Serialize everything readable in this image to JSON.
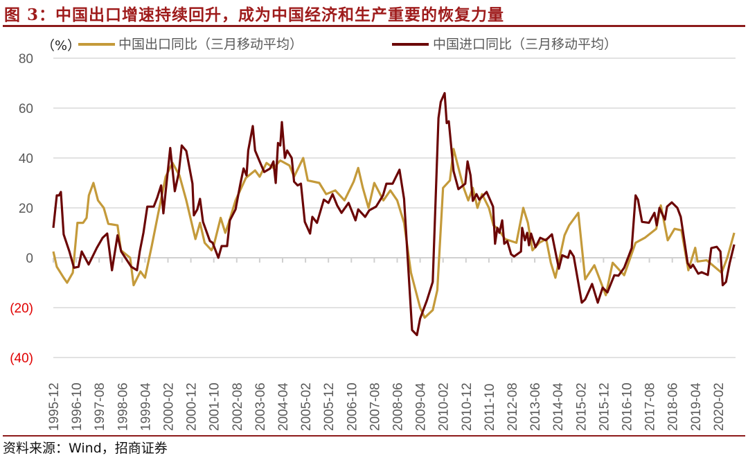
{
  "title": "图 3：中国出口增速持续回升，成为中国经济和生产重要的恢复力量",
  "source": "资料来源：Wind，招商证券",
  "chart_data": {
    "type": "line",
    "unit_label": "（%）",
    "x_start": "1995-12",
    "x_unit": "months since 1995-12",
    "x_ticks": [
      "1995-12",
      "1996-10",
      "1997-08",
      "1998-06",
      "1999-04",
      "2000-02",
      "2000-12",
      "2001-10",
      "2002-08",
      "2003-06",
      "2004-04",
      "2005-02",
      "2005-12",
      "2006-10",
      "2007-08",
      "2008-06",
      "2009-04",
      "2010-02",
      "2010-12",
      "2011-10",
      "2012-08",
      "2013-06",
      "2014-04",
      "2015-02",
      "2015-12",
      "2016-10",
      "2017-08",
      "2018-06",
      "2019-04",
      "2020-02"
    ],
    "y_ticks": [
      {
        "v": 80,
        "label": "80"
      },
      {
        "v": 60,
        "label": "60"
      },
      {
        "v": 40,
        "label": "40"
      },
      {
        "v": 20,
        "label": "20"
      },
      {
        "v": 0,
        "label": "0"
      },
      {
        "v": -20,
        "label": "(20)"
      },
      {
        "v": -40,
        "label": "(40)"
      }
    ],
    "ylim": [
      -40,
      80
    ],
    "xlim": [
      0,
      297
    ],
    "grid": true,
    "legend_position": "top",
    "series": [
      {
        "name": "中国出口同比（三月移动平均）",
        "color": "#c49a3a",
        "points": [
          [
            0,
            2.5
          ],
          [
            1.5,
            -3.6
          ],
          [
            4.5,
            -8
          ],
          [
            6,
            -10
          ],
          [
            8.5,
            -6
          ],
          [
            10.5,
            14
          ],
          [
            13,
            14
          ],
          [
            14.5,
            16
          ],
          [
            15.5,
            25
          ],
          [
            17.5,
            30
          ],
          [
            19.5,
            23
          ],
          [
            22,
            20
          ],
          [
            24,
            13.6
          ],
          [
            28,
            13
          ],
          [
            29.5,
            3
          ],
          [
            33.5,
            0
          ],
          [
            35,
            -11
          ],
          [
            38,
            -5.5
          ],
          [
            40,
            -8
          ],
          [
            43,
            5
          ],
          [
            45.6,
            17
          ],
          [
            49,
            32.5
          ],
          [
            52,
            38
          ],
          [
            55,
            33
          ],
          [
            58,
            23
          ],
          [
            62,
            7.5
          ],
          [
            64,
            14
          ],
          [
            66,
            6
          ],
          [
            69,
            3
          ],
          [
            70,
            5
          ],
          [
            73,
            16
          ],
          [
            75,
            10
          ],
          [
            76.5,
            14
          ],
          [
            79.5,
            23
          ],
          [
            84,
            32
          ],
          [
            88,
            35
          ],
          [
            90,
            32.5
          ],
          [
            93,
            38
          ],
          [
            96,
            36
          ],
          [
            99,
            39
          ],
          [
            103,
            37
          ],
          [
            105,
            32.5
          ],
          [
            109,
            40
          ],
          [
            111,
            31
          ],
          [
            116,
            30
          ],
          [
            119,
            25.5
          ],
          [
            123,
            27
          ],
          [
            127,
            23
          ],
          [
            131,
            30.5
          ],
          [
            133,
            36
          ],
          [
            135,
            28
          ],
          [
            137.5,
            20
          ],
          [
            140,
            30
          ],
          [
            144,
            23
          ],
          [
            147,
            27
          ],
          [
            150,
            23
          ],
          [
            153,
            14
          ],
          [
            156,
            -6
          ],
          [
            160,
            -20
          ],
          [
            162,
            -24
          ],
          [
            165.5,
            -21
          ],
          [
            167.5,
            -13
          ],
          [
            170,
            28
          ],
          [
            173,
            31
          ],
          [
            174.6,
            43.6
          ],
          [
            177,
            35
          ],
          [
            179,
            28
          ],
          [
            181,
            23
          ],
          [
            183,
            28
          ],
          [
            185,
            20
          ],
          [
            187,
            25.5
          ],
          [
            190,
            20
          ],
          [
            192,
            13
          ],
          [
            194,
            11.6
          ],
          [
            197,
            7.5
          ],
          [
            202,
            6
          ],
          [
            205,
            20
          ],
          [
            207,
            14
          ],
          [
            209,
            3
          ],
          [
            212,
            6
          ],
          [
            215,
            7.5
          ],
          [
            217,
            -2
          ],
          [
            219,
            -8
          ],
          [
            223,
            9
          ],
          [
            225,
            13
          ],
          [
            229,
            18
          ],
          [
            232,
            -8.6
          ],
          [
            236,
            -3
          ],
          [
            241,
            -15
          ],
          [
            244,
            -2
          ],
          [
            249,
            -7
          ],
          [
            254,
            6
          ],
          [
            258,
            8
          ],
          [
            263,
            11.6
          ],
          [
            265,
            21
          ],
          [
            268,
            7
          ],
          [
            271,
            11.6
          ],
          [
            274,
            11
          ],
          [
            277,
            -5
          ],
          [
            280,
            4
          ],
          [
            281,
            -1.5
          ],
          [
            285,
            -1
          ],
          [
            291.5,
            -6
          ],
          [
            294,
            0
          ],
          [
            297,
            10
          ]
        ]
      },
      {
        "name": "中国进口同比（三月移动平均）",
        "color": "#6b0606",
        "points": [
          [
            0,
            12
          ],
          [
            1.5,
            25
          ],
          [
            2.5,
            25
          ],
          [
            3.3,
            26.4
          ],
          [
            4.5,
            9.4
          ],
          [
            7,
            2.5
          ],
          [
            9,
            -4
          ],
          [
            11,
            -3.6
          ],
          [
            12.4,
            2.5
          ],
          [
            15.4,
            -2.7
          ],
          [
            19,
            4
          ],
          [
            21.5,
            8
          ],
          [
            23.5,
            9.7
          ],
          [
            25.6,
            -5
          ],
          [
            28,
            9
          ],
          [
            29.6,
            2.5
          ],
          [
            34,
            -3.6
          ],
          [
            36.5,
            -5
          ],
          [
            37.7,
            2.5
          ],
          [
            39.3,
            10
          ],
          [
            41,
            20.5
          ],
          [
            43.8,
            20.5
          ],
          [
            45.3,
            24
          ],
          [
            47,
            29
          ],
          [
            48,
            17.8
          ],
          [
            51,
            44
          ],
          [
            53,
            26.7
          ],
          [
            54.7,
            34
          ],
          [
            56,
            45
          ],
          [
            58,
            42.8
          ],
          [
            60.7,
            29.7
          ],
          [
            61.3,
            17
          ],
          [
            62.8,
            19.4
          ],
          [
            64,
            23.6
          ],
          [
            65.3,
            14.4
          ],
          [
            68.3,
            6.7
          ],
          [
            69.5,
            6
          ],
          [
            72,
            0
          ],
          [
            73.4,
            4.7
          ],
          [
            75.8,
            4.7
          ],
          [
            77,
            15
          ],
          [
            79.5,
            19.4
          ],
          [
            81.6,
            29.7
          ],
          [
            83,
            35.8
          ],
          [
            84.3,
            33
          ],
          [
            85,
            43
          ],
          [
            87,
            52.8
          ],
          [
            88,
            43
          ],
          [
            90,
            38.6
          ],
          [
            92,
            34.4
          ],
          [
            94.6,
            35.8
          ],
          [
            96,
            38.6
          ],
          [
            97,
            30
          ],
          [
            98,
            46
          ],
          [
            99,
            45
          ],
          [
            99.7,
            54.4
          ],
          [
            101,
            40
          ],
          [
            102,
            43
          ],
          [
            104,
            40
          ],
          [
            105,
            30.5
          ],
          [
            106.6,
            29
          ],
          [
            108,
            29.7
          ],
          [
            109.7,
            14.4
          ],
          [
            112,
            9.7
          ],
          [
            113,
            16.4
          ],
          [
            115,
            14
          ],
          [
            118,
            23.3
          ],
          [
            120,
            22
          ],
          [
            121.8,
            25.5
          ],
          [
            123.8,
            21
          ],
          [
            125.7,
            18
          ],
          [
            128.8,
            22
          ],
          [
            131.8,
            15
          ],
          [
            133,
            19.4
          ],
          [
            136,
            16.4
          ],
          [
            137.8,
            19
          ],
          [
            140.8,
            20.5
          ],
          [
            143.8,
            25
          ],
          [
            145.3,
            29.7
          ],
          [
            148,
            29.7
          ],
          [
            151,
            35.3
          ],
          [
            153,
            23.6
          ],
          [
            156.5,
            -29
          ],
          [
            158.6,
            -31
          ],
          [
            160,
            -24.4
          ],
          [
            163,
            -17
          ],
          [
            165.5,
            -9.7
          ],
          [
            168,
            56
          ],
          [
            169,
            62.5
          ],
          [
            170.7,
            66
          ],
          [
            171.6,
            54
          ],
          [
            172.5,
            54.7
          ],
          [
            174.6,
            34.7
          ],
          [
            176.7,
            27.5
          ],
          [
            179.7,
            29.7
          ],
          [
            180.7,
            38.6
          ],
          [
            182,
            33
          ],
          [
            183,
            22.8
          ],
          [
            184.6,
            25.5
          ],
          [
            185.8,
            23.3
          ],
          [
            189,
            26.4
          ],
          [
            191.8,
            20.5
          ],
          [
            192.7,
            5.6
          ],
          [
            193.7,
            12
          ],
          [
            194.6,
            10
          ],
          [
            195.8,
            15
          ],
          [
            196.7,
            5.6
          ],
          [
            198,
            6.7
          ],
          [
            199.7,
            1.4
          ],
          [
            201,
            0.5
          ],
          [
            204,
            2.5
          ],
          [
            204.5,
            12
          ],
          [
            205.7,
            7
          ],
          [
            206.7,
            10
          ],
          [
            207.5,
            5
          ],
          [
            208.4,
            9.7
          ],
          [
            210.3,
            4.2
          ],
          [
            212.4,
            8
          ],
          [
            214.8,
            7
          ],
          [
            217.5,
            9.4
          ],
          [
            220.5,
            -4.4
          ],
          [
            222,
            1
          ],
          [
            224.5,
            0
          ],
          [
            225.4,
            2.8
          ],
          [
            227,
            0.5
          ],
          [
            230.5,
            -18
          ],
          [
            232,
            -16.7
          ],
          [
            235,
            -10.5
          ],
          [
            237.5,
            -18
          ],
          [
            239.6,
            -12
          ],
          [
            241.7,
            -13.9
          ],
          [
            244.7,
            -7
          ],
          [
            246.5,
            -7.2
          ],
          [
            249,
            -4
          ],
          [
            250.7,
            0
          ],
          [
            252.3,
            3.9
          ],
          [
            254,
            25
          ],
          [
            255,
            23.3
          ],
          [
            256.8,
            14.4
          ],
          [
            259.8,
            14
          ],
          [
            262.2,
            18
          ],
          [
            263.2,
            13
          ],
          [
            264.4,
            20
          ],
          [
            265.9,
            17
          ],
          [
            266.8,
            15.3
          ],
          [
            267.7,
            20.5
          ],
          [
            269.8,
            22.2
          ],
          [
            272.2,
            20
          ],
          [
            273.7,
            16.4
          ],
          [
            276.7,
            -2.2
          ],
          [
            278,
            -4
          ],
          [
            279,
            -2.8
          ],
          [
            281.3,
            -6.4
          ],
          [
            282.8,
            -5.8
          ],
          [
            285.5,
            -6.9
          ],
          [
            287,
            3.9
          ],
          [
            289.4,
            4.4
          ],
          [
            291,
            2.5
          ],
          [
            292,
            -11
          ],
          [
            293.4,
            -9.7
          ],
          [
            295,
            -2.2
          ],
          [
            297,
            5.3
          ]
        ]
      }
    ]
  }
}
